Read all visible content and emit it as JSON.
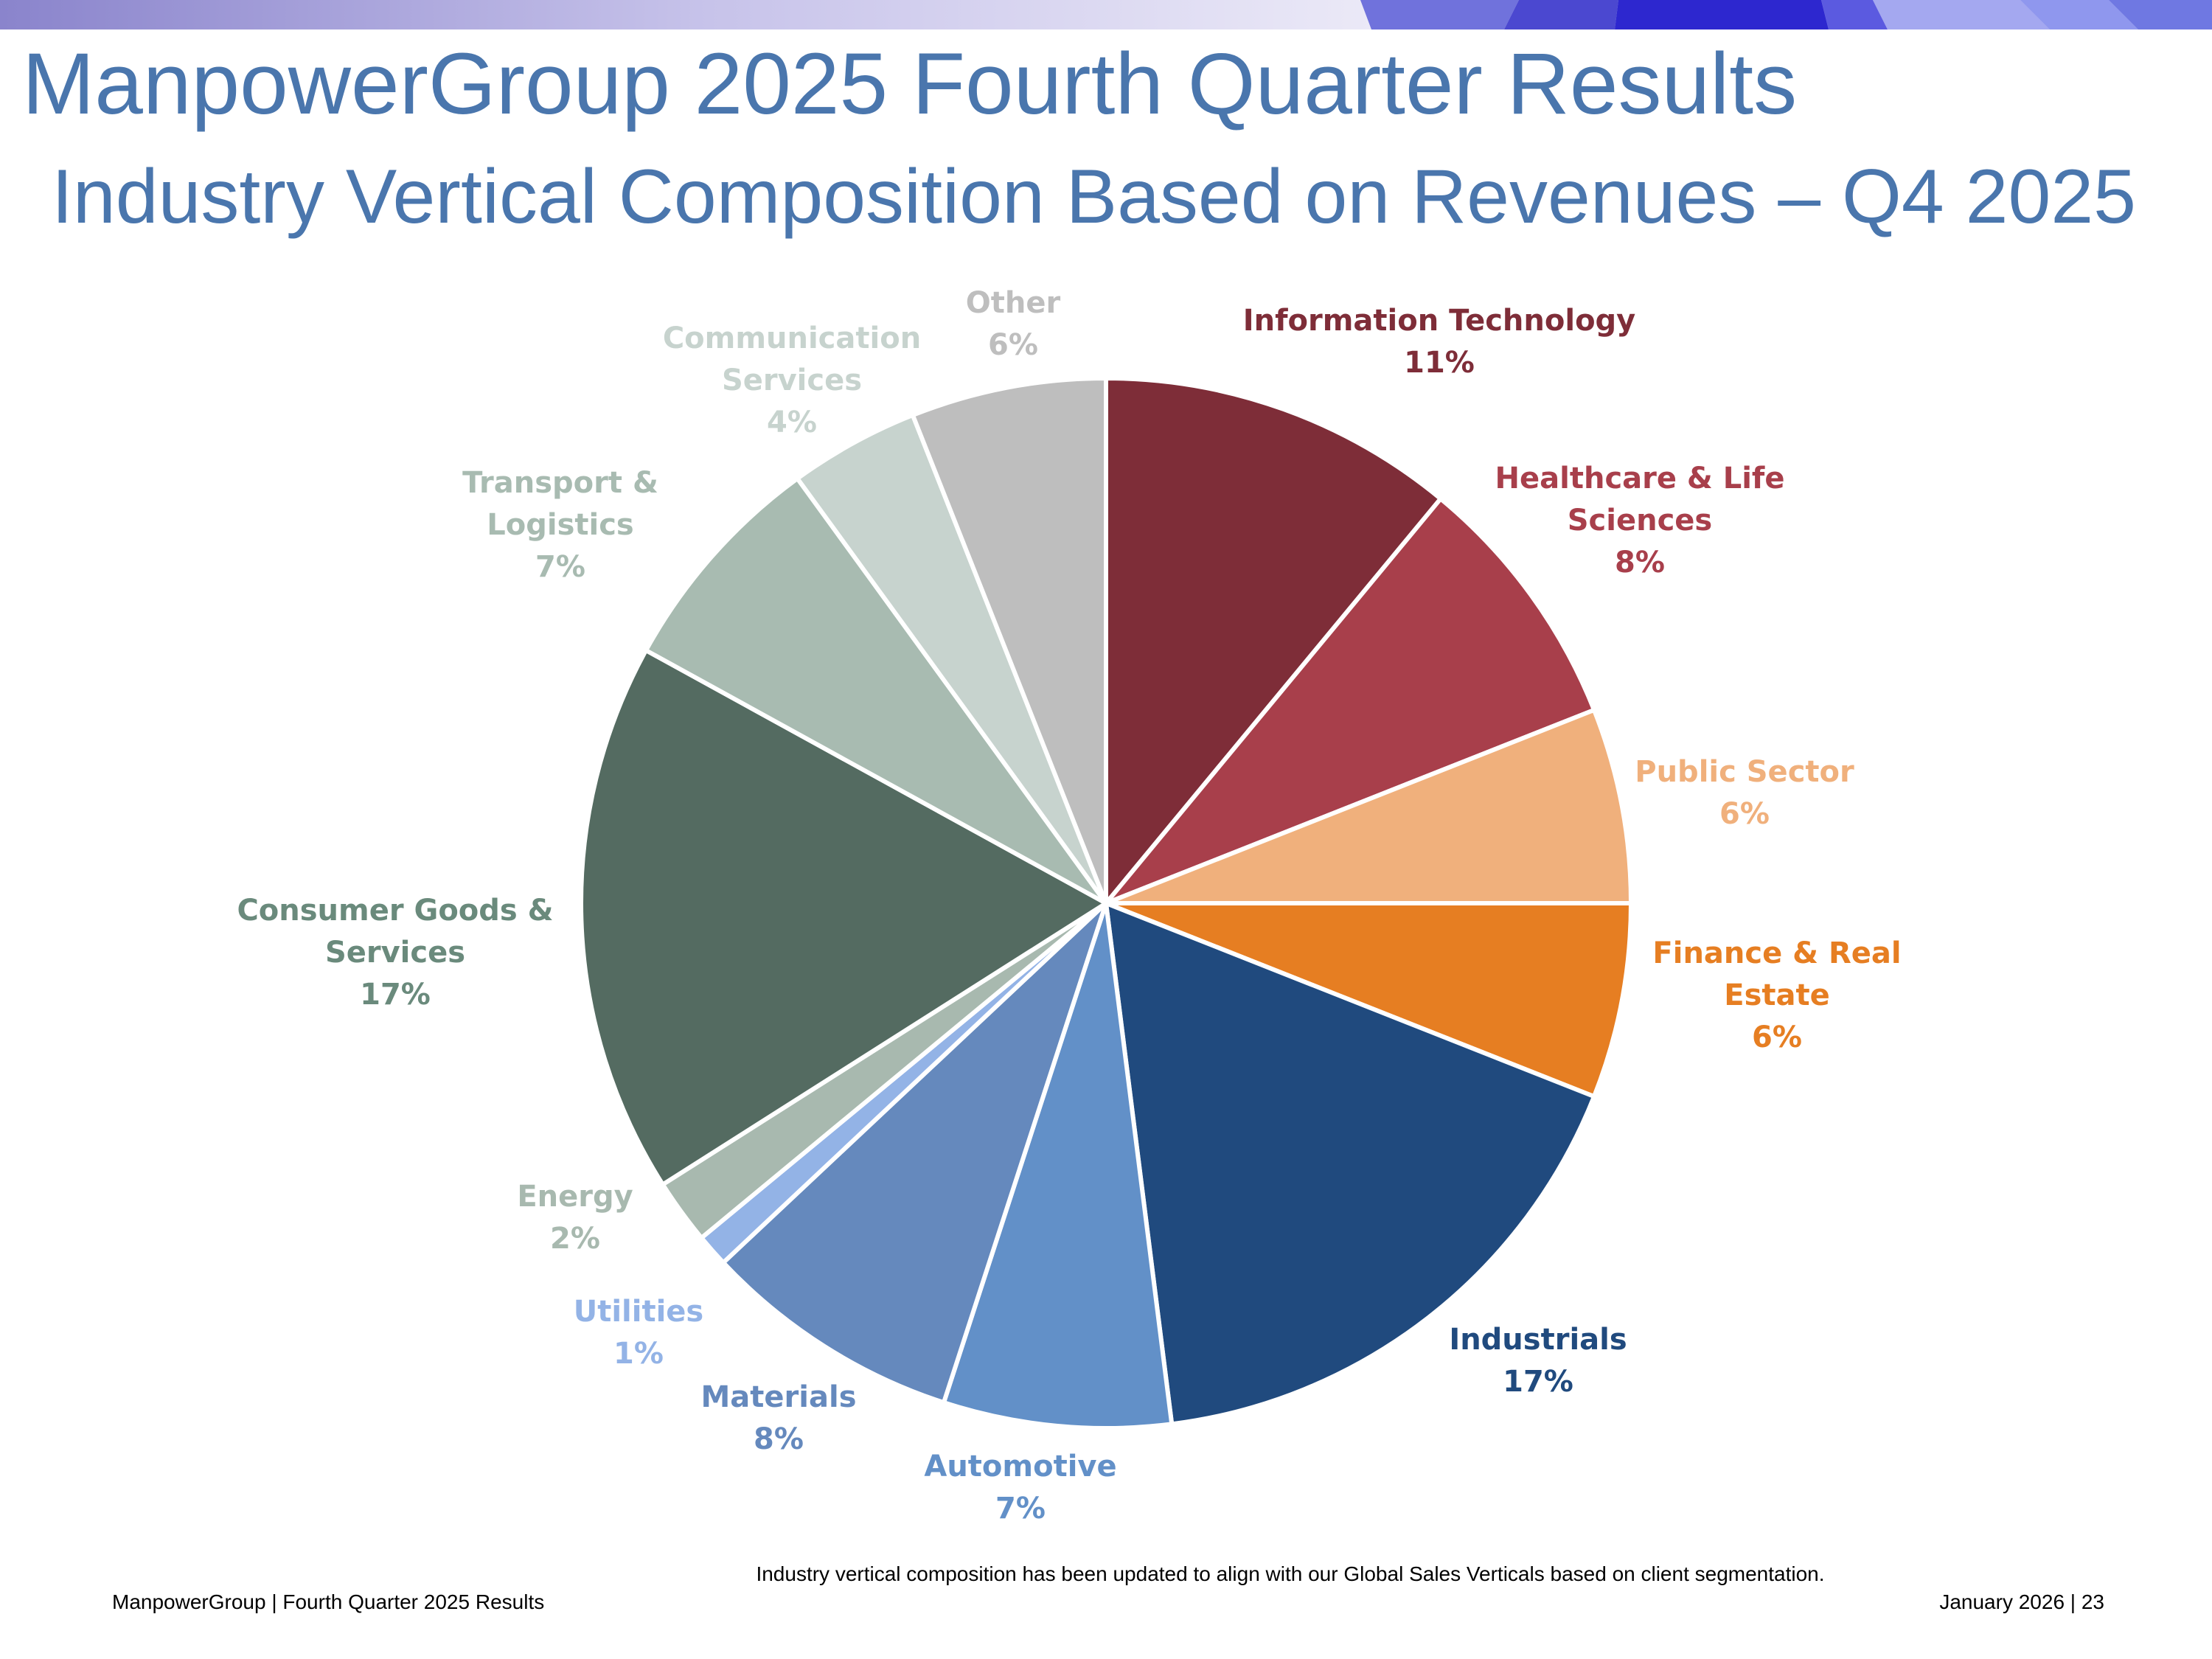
{
  "slide": {
    "title": "ManpowerGroup 2025 Fourth Quarter Results",
    "subtitle": "Industry Vertical Composition Based on Revenues – Q4 2025",
    "footnote": "Industry vertical composition has been updated to align with our Global Sales Verticals based on client segmentation.",
    "footer_left": "ManpowerGroup  |  Fourth Quarter 2025 Results",
    "footer_right": "January 2026   |   23"
  },
  "chart_data": {
    "type": "pie",
    "title": "",
    "slices": [
      {
        "label": [
          "Information Technology"
        ],
        "pct_label": "11%",
        "value": 11,
        "color": "#7e2d38",
        "text_color": "#7e2d38"
      },
      {
        "label": [
          "Healthcare & Life",
          "Sciences"
        ],
        "pct_label": "8%",
        "value": 8,
        "color": "#a83f4b",
        "text_color": "#a83f4b"
      },
      {
        "label": [
          "Public Sector"
        ],
        "pct_label": "6%",
        "value": 6,
        "color": "#f0b07c",
        "text_color": "#f0b07c"
      },
      {
        "label": [
          "Finance & Real",
          "Estate"
        ],
        "pct_label": "6%",
        "value": 6,
        "color": "#e67e22",
        "text_color": "#e67e22"
      },
      {
        "label": [
          "Industrials"
        ],
        "pct_label": "17%",
        "value": 17,
        "color": "#204a7e",
        "text_color": "#204a7e"
      },
      {
        "label": [
          "Automotive"
        ],
        "pct_label": "7%",
        "value": 7,
        "color": "#6290c8",
        "text_color": "#6290c8"
      },
      {
        "label": [
          "Materials"
        ],
        "pct_label": "8%",
        "value": 8,
        "color": "#6589bd",
        "text_color": "#6589bd"
      },
      {
        "label": [
          "Utilities"
        ],
        "pct_label": "1%",
        "value": 1,
        "color": "#93b3e6",
        "text_color": "#93b3e6"
      },
      {
        "label": [
          "Energy"
        ],
        "pct_label": "2%",
        "value": 2,
        "color": "#a8b9af",
        "text_color": "#a8b9af"
      },
      {
        "label": [
          "Consumer Goods &",
          "Services"
        ],
        "pct_label": "17%",
        "value": 17,
        "color": "#546b61",
        "text_color": "#6a8a7c"
      },
      {
        "label": [
          "Transport &",
          "Logistics"
        ],
        "pct_label": "7%",
        "value": 7,
        "color": "#a8bbb1",
        "text_color": "#a8bbb1"
      },
      {
        "label": [
          "Communication",
          "Services"
        ],
        "pct_label": "4%",
        "value": 4,
        "color": "#c7d3ce",
        "text_color": "#c7d3ce"
      },
      {
        "label": [
          "Other"
        ],
        "pct_label": "6%",
        "value": 6,
        "color": "#bebebe",
        "text_color": "#bebebe"
      }
    ]
  }
}
